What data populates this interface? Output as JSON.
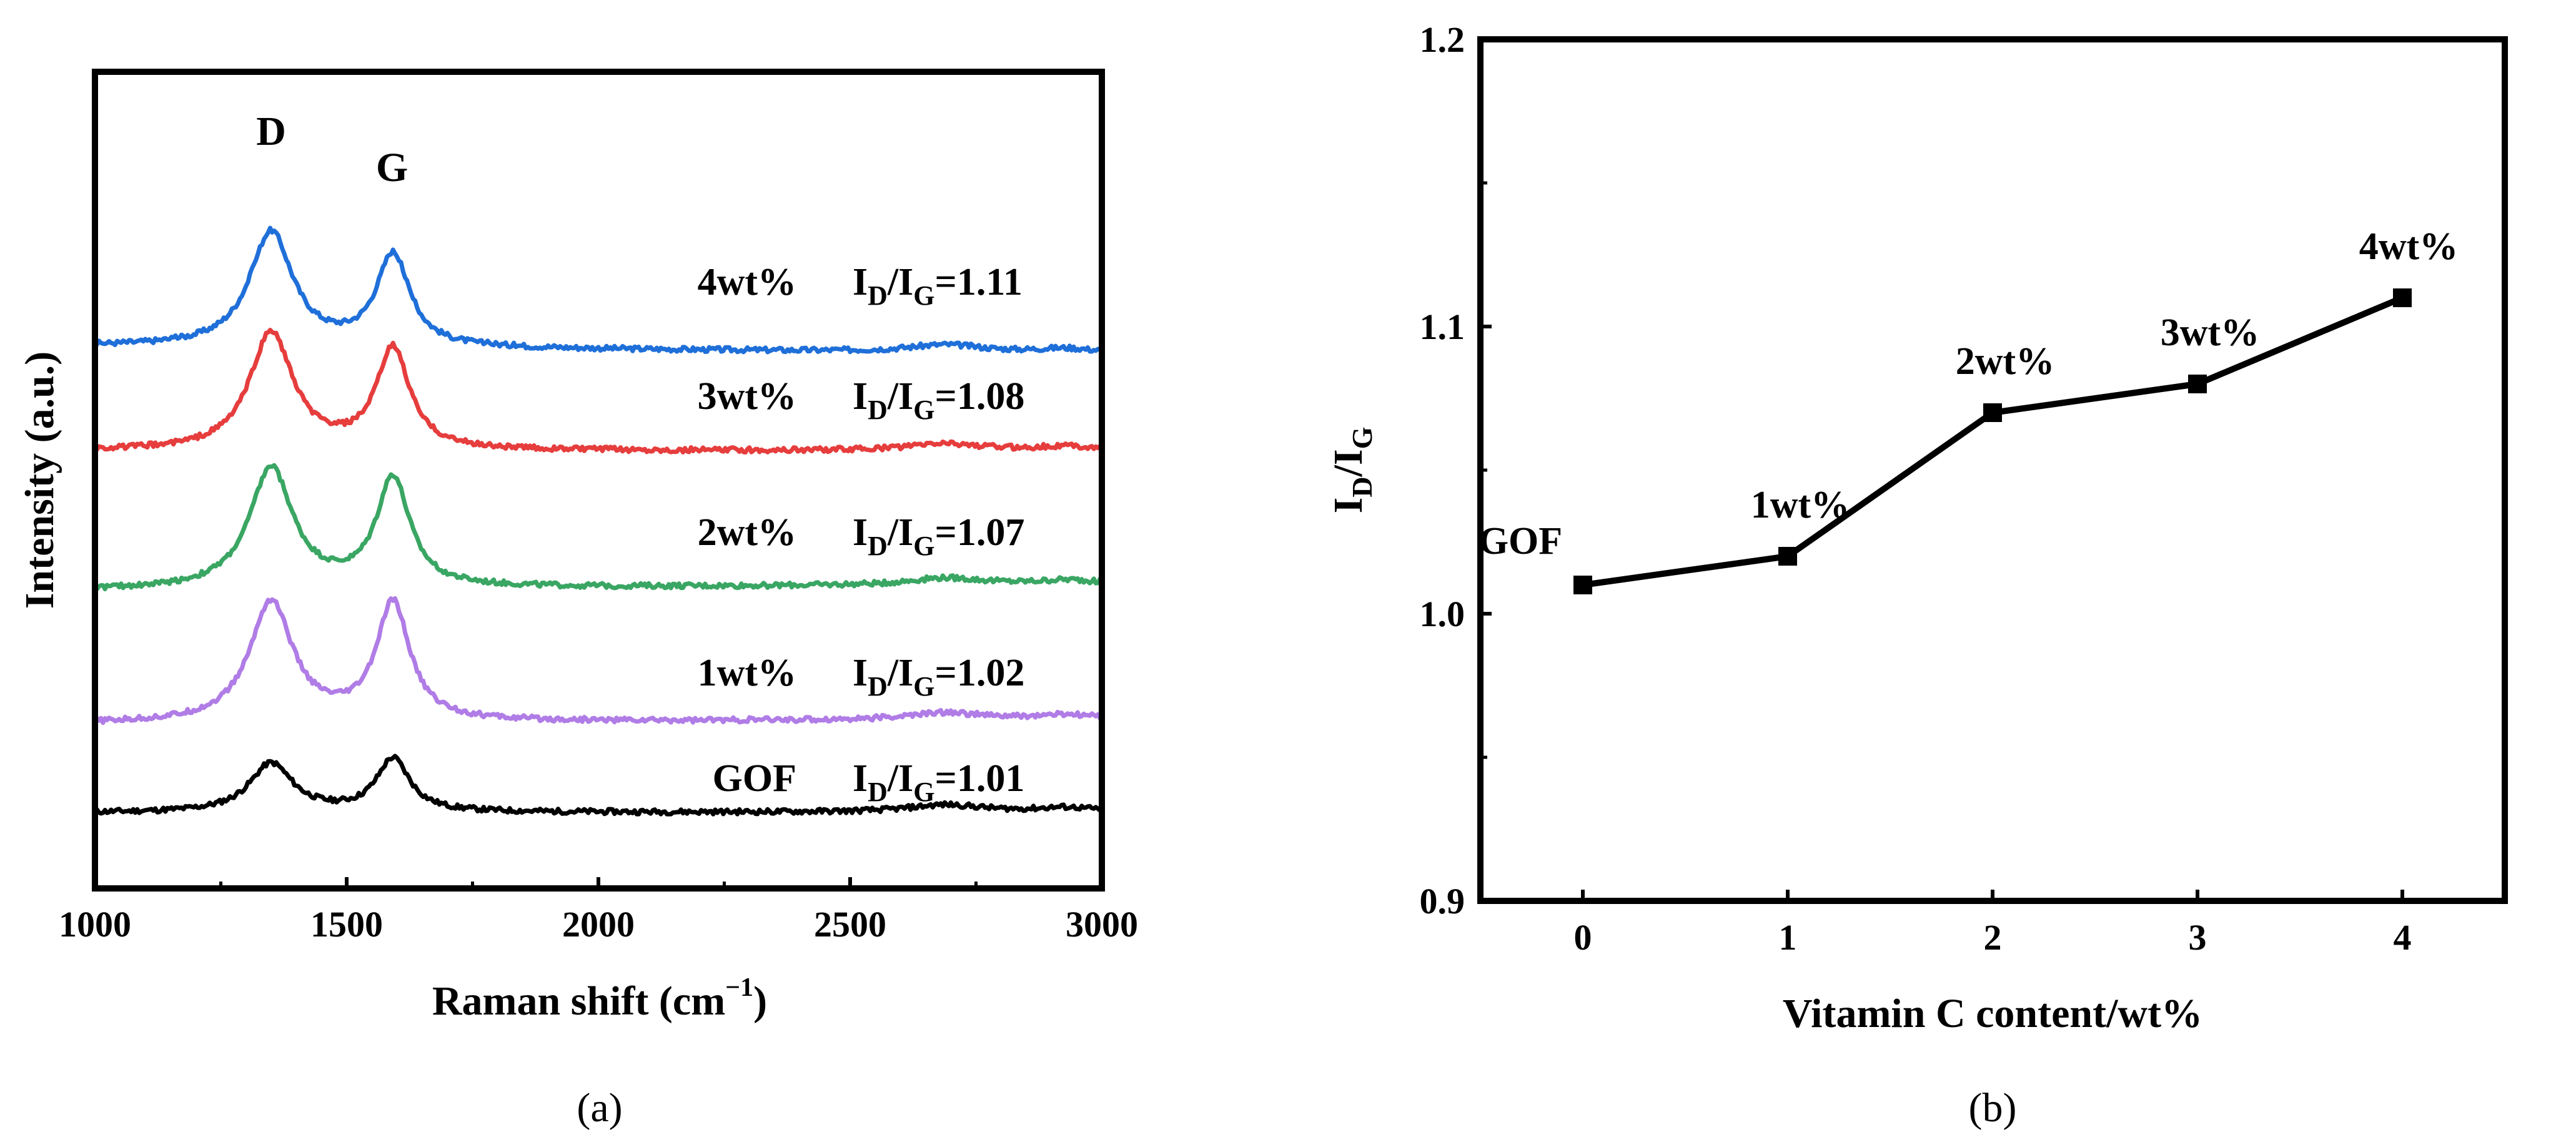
{
  "chart_data": [
    {
      "type": "line",
      "panel_label": "(a)",
      "xlabel": "Raman shift (cm",
      "xlabel_sup": "−1",
      "xlabel_close": ")",
      "ylabel": "Intensity (a.u.)",
      "xlim": [
        1000,
        3000
      ],
      "xticks": [
        "1000",
        "1500",
        "2000",
        "2500",
        "3000"
      ],
      "peak_labels": [
        {
          "name": "peak-d",
          "text": "D",
          "x": 1350
        },
        {
          "name": "peak-g",
          "text": "G",
          "x": 1590
        }
      ],
      "ratio_prefix": "I",
      "ratio_sub_d": "D",
      "ratio_slash": "/I",
      "ratio_sub_g": "G",
      "series": [
        {
          "name": "GOF",
          "label": "GOF",
          "ratio": "=1.01",
          "color": "#000000",
          "baseline": 0.0,
          "d_height": 0.34,
          "g_height": 0.37,
          "tail": 0.005
        },
        {
          "name": "1wt%",
          "label": "1wt%",
          "ratio": "=1.02",
          "color": "#b07ce6",
          "baseline": 0.62,
          "d_height": 0.84,
          "g_height": 0.82,
          "tail": 0.03
        },
        {
          "name": "2wt%",
          "label": "2wt%",
          "ratio": "=1.07",
          "color": "#3aa663",
          "baseline": 1.55,
          "d_height": 0.84,
          "g_height": 0.76,
          "tail": 0.04
        },
        {
          "name": "3wt%",
          "label": "3wt%",
          "ratio": "=1.08",
          "color": "#e63d3d",
          "baseline": 2.52,
          "d_height": 0.82,
          "g_height": 0.7,
          "tail": 0.0
        },
        {
          "name": "4wt%",
          "label": "4wt%",
          "ratio": "=1.11",
          "color": "#1f6fd9",
          "baseline": 3.25,
          "d_height": 0.8,
          "g_height": 0.64,
          "tail": -0.05
        }
      ]
    },
    {
      "type": "line",
      "panel_label": "(b)",
      "xlabel": "Vitamin C content/wt%",
      "ylabel_prefix": "I",
      "ylabel_sub_d": "D",
      "ylabel_slash": "/I",
      "ylabel_sub_g": "G",
      "xlim": [
        -0.5,
        4.5
      ],
      "ylim": [
        0.9,
        1.2
      ],
      "xticks": [
        "0",
        "1",
        "2",
        "3",
        "4"
      ],
      "yticks": [
        "0.9",
        "1.0",
        "1.1",
        "1.2"
      ],
      "x": [
        0,
        1,
        2,
        3,
        4
      ],
      "y": [
        1.01,
        1.02,
        1.07,
        1.08,
        1.11
      ],
      "point_labels": [
        "GOF",
        "1wt%",
        "2wt%",
        "3wt%",
        "4wt%"
      ],
      "color": "#000000"
    }
  ]
}
